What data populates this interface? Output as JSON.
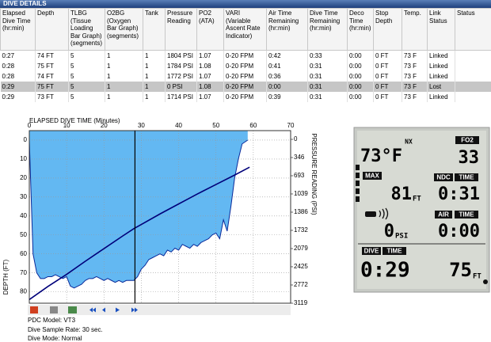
{
  "header": {
    "title": "DIVE DETAILS"
  },
  "table": {
    "columns": [
      "Elapsed Dive Time (hr:min)",
      "Depth",
      "TLBG (Tissue Loading Bar Graph) (segments)",
      "O2BG (Oxygen Bar Graph) (segments)",
      "Tank",
      "Pressure Reading",
      "PO2 (ATA)",
      "VARI (Variable Ascent Rate Indicator)",
      "Air Time Remaining (hr:min)",
      "Dive Time Remaining (hr:min)",
      "Deco Time (hr:min)",
      "Stop Depth",
      "Temp.",
      "Link Status",
      "Status"
    ],
    "rows": [
      [
        "0:27",
        "74 FT",
        "5",
        "1",
        "1",
        "1804 PSI",
        "1.07",
        "0-20 FPM",
        "0:42",
        "0:33",
        "0:00",
        "0 FT",
        "73 F",
        "Linked",
        null
      ],
      [
        "0:28",
        "75 FT",
        "5",
        "1",
        "1",
        "1784 PSI",
        "1.08",
        "0-20 FPM",
        "0:41",
        "0:31",
        "0:00",
        "0 FT",
        "73 F",
        "Linked",
        null
      ],
      [
        "0:28",
        "74 FT",
        "5",
        "1",
        "1",
        "1772 PSI",
        "1.07",
        "0-20 FPM",
        "0:36",
        "0:31",
        "0:00",
        "0 FT",
        "73 F",
        "Linked",
        null
      ],
      [
        "0:29",
        "75 FT",
        "5",
        "1",
        "1",
        "0 PSI",
        "1.08",
        "0-20 FPM",
        "0:00",
        "0:31",
        "0:00",
        "0 FT",
        "73 F",
        "Lost",
        null
      ],
      [
        "0:29",
        "73 FT",
        "5",
        "1",
        "1",
        "1714 PSI",
        "1.07",
        "0-20 FPM",
        "0:39",
        "0:31",
        "0:00",
        "0 FT",
        "73 F",
        "Linked",
        null
      ]
    ],
    "selected_row": 3
  },
  "chart_data": {
    "type": "line",
    "x_label": "ELAPSED DIVE TIME (Minutes)",
    "y_label": "DEPTH (FT)",
    "y2_label": "PRESSURE READING (PSI)",
    "xlim": [
      0,
      70
    ],
    "xticks": [
      0,
      10,
      20,
      30,
      40,
      50,
      60,
      70
    ],
    "ylim": [
      -5,
      86
    ],
    "yticks": [
      0,
      10,
      20,
      30,
      40,
      50,
      60,
      70,
      80
    ],
    "y2lim": [
      -166,
      3119
    ],
    "y2ticks": [
      0,
      346,
      693,
      1039,
      1386,
      1732,
      2079,
      2425,
      2772,
      3119
    ],
    "grid": true,
    "cursor": 28.3,
    "series": [
      {
        "color": "#0a2a9a",
        "fill": "#63b8f2",
        "x": [
          0,
          1,
          2,
          3,
          4,
          5,
          6,
          7,
          8,
          9,
          10,
          11,
          12,
          13,
          14,
          15,
          16,
          17,
          18,
          19,
          20,
          21,
          22,
          23,
          24,
          25,
          26,
          27,
          28,
          29,
          30,
          31,
          32,
          33,
          34,
          35,
          36,
          37,
          38,
          39,
          40,
          41,
          42,
          43,
          44,
          45,
          46,
          47,
          48,
          49,
          50,
          51,
          52,
          53,
          54,
          55,
          56,
          57,
          58.5
        ],
        "values": [
          0,
          60,
          70,
          73,
          73,
          72,
          72,
          71,
          72,
          73,
          72,
          77,
          78,
          77,
          76,
          74,
          73,
          73,
          72,
          73,
          74,
          73,
          74,
          75,
          74,
          75,
          74,
          74,
          74,
          72,
          68,
          66,
          63,
          62,
          61,
          60,
          61,
          58,
          59,
          57,
          58,
          55,
          56,
          57,
          55,
          56,
          54,
          53,
          52,
          50,
          49,
          52,
          42,
          48,
          35,
          20,
          10,
          2,
          0
        ]
      },
      {
        "color": "#00007a",
        "axis": "y2",
        "x": [
          0,
          5,
          10,
          15,
          20,
          25,
          28,
          30,
          35,
          40,
          45,
          50,
          55,
          59
        ],
        "values": [
          3050,
          2800,
          2570,
          2320,
          2080,
          1840,
          1700,
          1620,
          1420,
          1230,
          1040,
          860,
          680,
          530
        ]
      }
    ]
  },
  "device": {
    "mode": "NX",
    "temp": "73°F",
    "fo2_label": "FO2",
    "fo2": "33",
    "max_label": "MAX",
    "max_depth": "81",
    "max_unit": "FT",
    "ndc_label": "NDC",
    "ndc_time_label": "TIME",
    "ndc": "0:31",
    "pressure": "0",
    "pressure_unit": "PSI",
    "air_label": "AIR",
    "air_time_label": "TIME",
    "air_time": "0:00",
    "dive_label": "DIVE",
    "dive_time_label": "TIME",
    "dive_time": "0:29",
    "depth": "75",
    "depth_unit": "FT"
  },
  "footer": [
    "PDC Model: VT3",
    "Dive Sample Rate: 30 sec.",
    "Dive Mode: Normal"
  ]
}
